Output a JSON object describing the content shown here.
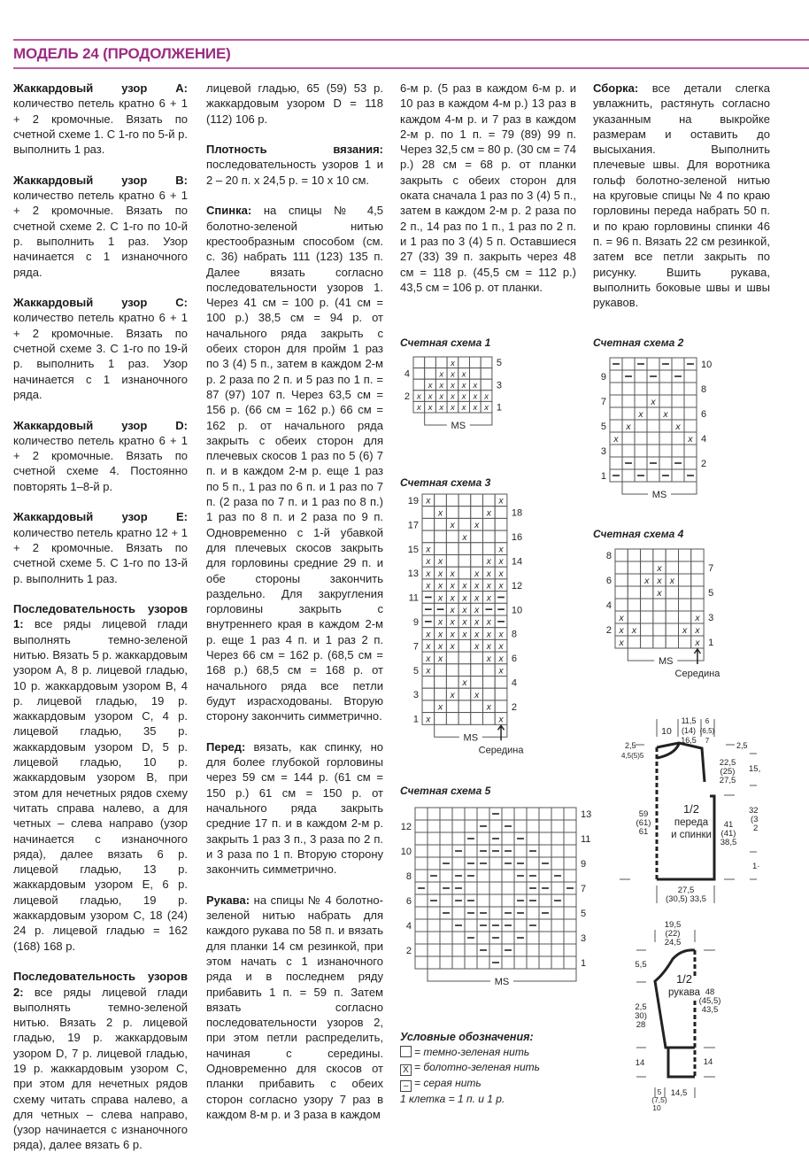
{
  "header": {
    "title": "МОДЕЛЬ 24 (ПРОДОЛЖЕНИЕ)",
    "accent_color": "#9c2c84"
  },
  "columns": [
    [
      {
        "lead": "Жаккардовый узор А:",
        "text": " количество петель кратно 6 + 1 + 2 кромочные. Вязать по счетной схеме 1. С 1-го по 5-й р. выполнить 1 раз."
      },
      {
        "lead": "Жаккардовый узор В:",
        "text": " количество петель кратно 6 + 1 + 2 кромочные. Вязать по счетной схеме 2. С 1-го по 10-й р. выполнить 1 раз. Узор начинается с 1 изнаночного ряда."
      },
      {
        "lead": "Жаккардовый узор С:",
        "text": " количество петель кратно 6 + 1 + 2 кромочные. Вязать по счетной схеме 3. С 1-го по 19-й р. выполнить 1 раз. Узор начинается с 1 изнаночного ряда."
      },
      {
        "lead": "Жаккардовый узор D:",
        "text": " количество петель кратно 6 + 1 + 2 кромочные. Вязать по счетной схеме 4. Постоянно повторять 1–8-й р."
      },
      {
        "lead": "Жаккардовый узор Е:",
        "text": " количество петель кратно 12 + 1 + 2 кромочные. Вязать по счетной схеме 5. С 1-го по 13-й р. выполнить 1 раз."
      },
      {
        "lead": "Последовательность узоров 1:",
        "text": " все ряды лицевой глади выполнять темно-зеленой нитью. Вязать 5 р. жаккардовым узором А, 8 р. лицевой гладью, 10 р. жаккардовым узором В, 4 р. лицевой гладью, 19 р. жаккардовым узором С, 4 р. лицевой гладью, 35 р. жаккардовым узором D, 5 р. лицевой гладью, 10 р. жаккардовым узором В, при этом для нечетных рядов схему читать справа налево, а для четных – слева направо (узор начинается с изнаночного ряда), далее вязать 6 р. лицевой гладью, 13 р. жаккардовым узором Е, 6 р. лицевой гладью, 19 р. жаккардовым узором С, 18 (24) 24 р. лицевой гладью = 162 (168) 168 р."
      },
      {
        "lead": "Последовательность узоров 2:",
        "text": " все ряды лицевой глади выполнять темно-зеленой нитью. Вязать 2 р. лицевой гладью, 19 р. жаккардовым узором D, 7 р. лицевой гладью, 19 р. жаккардовым узором С, при этом для нечетных рядов схему читать справа налево, а для четных – слева направо, (узор начинается с изнаночного ряда), далее вязать 6 р."
      }
    ],
    [
      {
        "lead": "",
        "text": "лицевой гладью, 65 (59) 53 р. жаккардовым узором D = 118 (112) 106 р."
      },
      {
        "lead": "Плотность вязания:",
        "text": " последовательность узоров 1 и 2 – 20 п. х 24,5 р. = 10 х 10 см."
      },
      {
        "lead": "Спинка:",
        "text": " на спицы № 4,5 болотно-зеленой нитью крестообразным способом (см. с. 36) набрать 111 (123) 135 п. Далее вязать согласно последовательности узоров 1. Через 41 см = 100 р. (41 см = 100 р.) 38,5 см = 94 р. от начального ряда закрыть с обеих сторон для пройм 1 раз по 3 (4) 5 п., затем в каждом 2-м р. 2 раза по 2 п. и 5 раз по 1 п. = 87 (97) 107 п. Через 63,5 см = 156 р. (66 см = 162 р.) 66 см = 162 р. от начального ряда закрыть с обеих сторон для плечевых скосов 1 раз по 5 (6) 7 п. и в каждом 2-м р. еще 1 раз по 5 п., 1 раз по 6 п. и 1 раз по 7 п. (2 раза по 7 п. и 1 раз по 8 п.) 1 раз по 8 п. и 2 раза по 9 п. Одновременно с 1-й убавкой для плечевых скосов закрыть для горловины средние 29 п. и обе стороны закончить раздельно. Для закругления горловины закрыть с внутреннего края в каждом 2-м р. еще 1 раз 4 п. и 1 раз 2 п. Через 66 см = 162 р. (68,5 см = 168 р.) 68,5 см = 168 р. от начального ряда все петли будут израсходованы. Вторую сторону закончить симметрично."
      },
      {
        "lead": "Перед:",
        "text": " вязать, как спинку, но для более глубокой горловины через 59 см = 144 р. (61 см = 150 р.) 61 см = 150 р. от начального ряда закрыть средние 17 п. и в каждом 2-м р. закрыть 1 раз 3 п., 3 раза по 2 п. и 3 раза по 1 п. Вторую сторону закончить симметрично."
      },
      {
        "lead": "Рукава:",
        "text": " на спицы № 4 болотно-зеленой нитью набрать для каждого рукава по 58 п. и вязать для планки 14 см резинкой, при этом начать с 1 изнаночного ряда и в последнем ряду прибавить 1 п. = 59 п. Затем вязать согласно последовательности узоров 2, при этом петли распределить, начиная с середины. Одновременно для скосов от планки прибавить с обеих сторон согласно узору 7 раз в каждом 8-м р. и 3 раза в каждом"
      }
    ],
    [
      {
        "lead": "",
        "text": "6-м р. (5 раз в каждом 6-м р. и 10 раз в каждом 4-м р.) 13 раз в каждом 4-м р. и 7 раз в каждом 2-м р. по 1 п. = 79 (89) 99 п. Через 32,5 см = 80 р. (30 см = 74 р.) 28 см = 68 р. от планки закрыть с обеих сторон для оката сначала 1 раз по 3 (4) 5 п., затем в каждом 2-м р. 2 раза по 2 п., 14 раз по 1 п., 1 раз по 2 п. и 1 раз по 3 (4) 5 п. Оставшиеся 27 (33) 39 п. закрыть через 48 см = 118 р. (45,5 см = 112 р.) 43,5 см = 106 р. от планки."
      }
    ],
    [
      {
        "lead": "Сборка:",
        "text": " все детали слегка увлажнить, растянуть согласно указанным на выкройке размерам и оставить до высыхания. Выполнить плечевые швы. Для воротника гольф болотно-зеленой нитью на круговые спицы № 4 по краю горловины переда набрать 50 п. и по краю горловины спинки 46 п. = 96 п. Вязать 22 см резинкой, затем все петли закрыть по рисунку. Вшить рукава, выполнить боковые швы и швы рукавов."
      }
    ]
  ],
  "charts": [
    {
      "title": "Счетная схема 1",
      "odd_side": "right",
      "ms": "MS",
      "rows": [
        "...X...",
        "..XXX..",
        ".XXXXX.",
        "XXXXXXX",
        "XXXXXXX"
      ]
    },
    {
      "title": "Счетная схема 2",
      "odd_side": "left",
      "ms": "MS",
      "rows": [
        "-.-.-.-",
        ".-.-.-.",
        ".......",
        "...X...",
        "..X.X..",
        ".X...X.",
        "X.....X",
        ".......",
        ".-.-.-.",
        "-.-.-.-"
      ]
    },
    {
      "title": "Счетная схема 3",
      "odd_side": "left",
      "ms": "MS",
      "center": "Середина",
      "rows": [
        "X.....X",
        ".X...X.",
        "..X.X..",
        "...X...",
        "X.....X",
        "XX...XX",
        "XXX.XXX",
        "XXXXXXX",
        "-XXXXX-",
        "--XXX--",
        "-XXXXX-",
        "XXXXXXX",
        "XXX.XXX",
        "XX...XX",
        "X.....X",
        "...X...",
        "..X.X..",
        ".X...X.",
        "X.....X"
      ]
    },
    {
      "title": "Счетная схема 4",
      "odd_side": "right",
      "ms": "MS",
      "center": "Середина",
      "rows": [
        ".......",
        "...X...",
        "..XXX..",
        "...X...",
        ".......",
        "X.....X",
        "XX...XX",
        "X.....X"
      ]
    },
    {
      "title": "Счетная схема 5",
      "odd_side": "right",
      "ms": "MS",
      "rows": [
        "......-......",
        ".....-.-.....",
        "....-.-.-....",
        "...-.---.-...",
        "..-.--.--.-..",
        ".-.--...--.-.",
        "-.--.....--.-",
        ".-.--...--.-.",
        "..-.--.--.-..",
        "...-.---.-...",
        "....-.-.-....",
        ".....-.-.....",
        "......-......"
      ]
    }
  ],
  "legend": {
    "title": "Условные обозначения:",
    "items": [
      {
        "symbol": "",
        "label": "= темно-зеленая нить"
      },
      {
        "symbol": "X",
        "label": "= болотно-зеленая нить"
      },
      {
        "symbol": "–",
        "label": "= серая нить"
      }
    ],
    "note": "1 клетка = 1 п. и 1 р."
  },
  "body_pattern": {
    "label": [
      "1/2",
      "переда",
      "и спинки"
    ],
    "neck_width": "10",
    "shoulder": [
      "11,5",
      "(14)",
      "16,5"
    ],
    "shoulder_edge": [
      "6",
      "(6,5)",
      "7"
    ],
    "back_neck_depth": "2,5",
    "front_neck_depth": "4,5(5)5",
    "shoulder_drop": "2,5",
    "armhole": [
      "22,5",
      "(25)",
      "27,5"
    ],
    "length": [
      "59",
      "(61)",
      "61"
    ],
    "side": [
      "41",
      "(41)",
      "38,5"
    ],
    "width": [
      "27,5",
      "(30,5) 33,5"
    ],
    "edge_partial": [
      "15,",
      "32",
      "(3",
      "2",
      "1·"
    ]
  },
  "sleeve_pattern": {
    "label": [
      "1/2",
      "рукава"
    ],
    "top_width": [
      "19,5",
      "(22)",
      "24,5"
    ],
    "cap_height": "5,5",
    "length": [
      "48",
      "(45,5)",
      "43,5"
    ],
    "side": [
      "2,5",
      "30)",
      "28"
    ],
    "cuff_left": "14",
    "cuff_right": "14",
    "cuff_offset": [
      "5",
      "(7,5)",
      "10"
    ],
    "cuff_width": "14,5"
  }
}
